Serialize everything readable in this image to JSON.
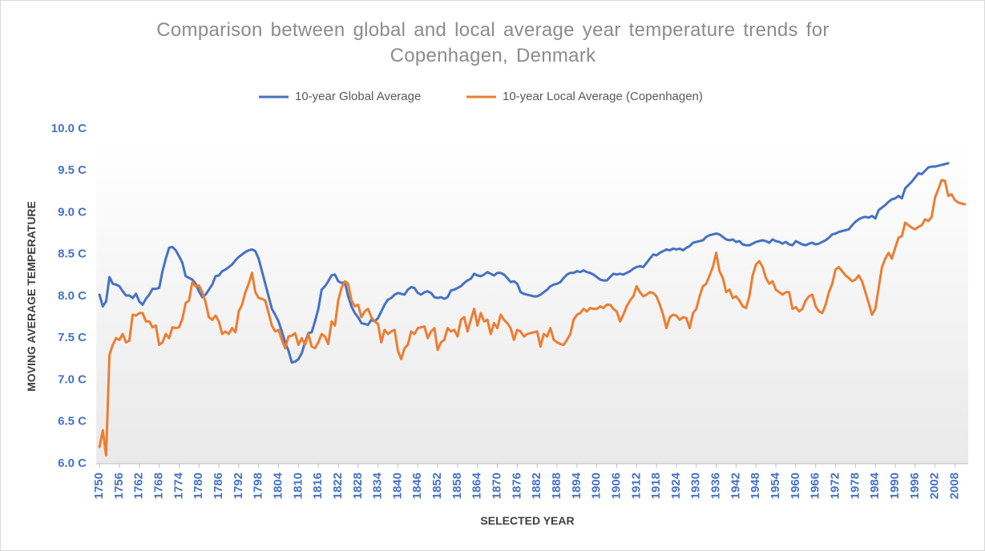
{
  "chart_data": {
    "type": "line",
    "title": "Comparison between global and local average year temperature trends for Copenhagen, Denmark",
    "x_label": "SELECTED YEAR",
    "y_label": "MOVING AVERAGE TEMPERATURE",
    "legend": "top",
    "grid": false,
    "xlim": [
      1749,
      2012
    ],
    "xticks": [
      1750,
      1756,
      1762,
      1768,
      1774,
      1780,
      1786,
      1792,
      1798,
      1804,
      1810,
      1816,
      1822,
      1828,
      1834,
      1840,
      1846,
      1852,
      1858,
      1864,
      1870,
      1876,
      1882,
      1888,
      1894,
      1900,
      1906,
      1912,
      1918,
      1924,
      1930,
      1936,
      1942,
      1948,
      1954,
      1960,
      1966,
      1972,
      1978,
      1984,
      1990,
      1996,
      2002,
      2008
    ],
    "ylim": [
      6,
      10
    ],
    "yticks": [
      {
        "value": 6,
        "label": "6.0 C"
      },
      {
        "value": 6.5,
        "label": "6.5 C"
      },
      {
        "value": 7,
        "label": "7.0 C"
      },
      {
        "value": 7.5,
        "label": "7.5 C"
      },
      {
        "value": 8,
        "label": "8.0 C"
      },
      {
        "value": 8.5,
        "label": "8.5 C"
      },
      {
        "value": 9,
        "label": "9.0 C"
      },
      {
        "value": 9.5,
        "label": "9.5 C"
      },
      {
        "value": 10,
        "label": "10.0 C"
      }
    ],
    "x": [
      1750,
      1751,
      1752,
      1753,
      1754,
      1755,
      1756,
      1757,
      1758,
      1759,
      1760,
      1761,
      1762,
      1763,
      1764,
      1765,
      1766,
      1767,
      1768,
      1769,
      1770,
      1771,
      1772,
      1773,
      1774,
      1775,
      1776,
      1777,
      1778,
      1779,
      1780,
      1781,
      1782,
      1783,
      1784,
      1785,
      1786,
      1787,
      1788,
      1789,
      1790,
      1791,
      1792,
      1793,
      1794,
      1795,
      1796,
      1797,
      1798,
      1799,
      1800,
      1801,
      1802,
      1803,
      1804,
      1805,
      1806,
      1807,
      1808,
      1809,
      1810,
      1811,
      1812,
      1813,
      1814,
      1815,
      1816,
      1817,
      1818,
      1819,
      1820,
      1821,
      1822,
      1823,
      1824,
      1825,
      1826,
      1827,
      1828,
      1829,
      1830,
      1831,
      1832,
      1833,
      1834,
      1835,
      1836,
      1837,
      1838,
      1839,
      1840,
      1841,
      1842,
      1843,
      1844,
      1845,
      1846,
      1847,
      1848,
      1849,
      1850,
      1851,
      1852,
      1853,
      1854,
      1855,
      1856,
      1857,
      1858,
      1859,
      1860,
      1861,
      1862,
      1863,
      1864,
      1865,
      1866,
      1867,
      1868,
      1869,
      1870,
      1871,
      1872,
      1873,
      1874,
      1875,
      1876,
      1877,
      1878,
      1879,
      1880,
      1881,
      1882,
      1883,
      1884,
      1885,
      1886,
      1887,
      1888,
      1889,
      1890,
      1891,
      1892,
      1893,
      1894,
      1895,
      1896,
      1897,
      1898,
      1899,
      1900,
      1901,
      1902,
      1903,
      1904,
      1905,
      1906,
      1907,
      1908,
      1909,
      1910,
      1911,
      1912,
      1913,
      1914,
      1915,
      1916,
      1917,
      1918,
      1919,
      1920,
      1921,
      1922,
      1923,
      1924,
      1925,
      1926,
      1927,
      1928,
      1929,
      1930,
      1931,
      1932,
      1933,
      1934,
      1935,
      1936,
      1937,
      1938,
      1939,
      1940,
      1941,
      1942,
      1943,
      1944,
      1945,
      1946,
      1947,
      1948,
      1949,
      1950,
      1951,
      1952,
      1953,
      1954,
      1955,
      1956,
      1957,
      1958,
      1959,
      1960,
      1961,
      1962,
      1963,
      1964,
      1965,
      1966,
      1967,
      1968,
      1969,
      1970,
      1971,
      1972,
      1973,
      1974,
      1975,
      1976,
      1977,
      1978,
      1979,
      1980,
      1981,
      1982,
      1983,
      1984,
      1985,
      1986,
      1987,
      1988,
      1989,
      1990,
      1991,
      1992,
      1993,
      1994,
      1995,
      1996,
      1997,
      1998,
      1999,
      2000,
      2001,
      2002,
      2003,
      2004,
      2005,
      2006,
      2007,
      2008,
      2009,
      2010,
      2011
    ],
    "series": [
      {
        "name": "10-year Global Average",
        "color": "#4472c4",
        "values": [
          8.02,
          7.88,
          7.94,
          8.23,
          8.15,
          8.14,
          8.12,
          8.06,
          8.01,
          8.01,
          7.98,
          8.03,
          7.94,
          7.9,
          7.97,
          8.02,
          8.09,
          8.09,
          8.1,
          8.3,
          8.45,
          8.58,
          8.59,
          8.55,
          8.48,
          8.4,
          8.24,
          8.22,
          8.2,
          8.15,
          8.06,
          7.99,
          8.02,
          8.08,
          8.14,
          8.24,
          8.25,
          8.3,
          8.32,
          8.35,
          8.38,
          8.43,
          8.47,
          8.5,
          8.53,
          8.55,
          8.56,
          8.54,
          8.45,
          8.3,
          8.15,
          8.0,
          7.85,
          7.78,
          7.7,
          7.58,
          7.45,
          7.35,
          7.21,
          7.22,
          7.25,
          7.32,
          7.45,
          7.56,
          7.57,
          7.7,
          7.85,
          8.08,
          8.12,
          8.18,
          8.25,
          8.26,
          8.18,
          8.16,
          8.17,
          8.0,
          7.88,
          7.8,
          7.75,
          7.68,
          7.67,
          7.66,
          7.72,
          7.7,
          7.74,
          7.82,
          7.9,
          7.96,
          7.98,
          8.02,
          8.04,
          8.03,
          8.02,
          8.08,
          8.11,
          8.1,
          8.04,
          8.02,
          8.05,
          8.06,
          8.04,
          7.99,
          7.98,
          7.99,
          7.97,
          7.99,
          8.07,
          8.08,
          8.1,
          8.12,
          8.16,
          8.19,
          8.21,
          8.27,
          8.25,
          8.24,
          8.26,
          8.29,
          8.27,
          8.25,
          8.28,
          8.28,
          8.26,
          8.22,
          8.17,
          8.18,
          8.15,
          8.05,
          8.03,
          8.02,
          8.01,
          8.0,
          8.0,
          8.02,
          8.05,
          8.08,
          8.12,
          8.14,
          8.15,
          8.17,
          8.22,
          8.26,
          8.28,
          8.28,
          8.3,
          8.29,
          8.31,
          8.29,
          8.28,
          8.26,
          8.23,
          8.2,
          8.19,
          8.19,
          8.23,
          8.27,
          8.26,
          8.27,
          8.26,
          8.28,
          8.3,
          8.33,
          8.35,
          8.36,
          8.35,
          8.4,
          8.45,
          8.5,
          8.49,
          8.52,
          8.54,
          8.56,
          8.55,
          8.57,
          8.56,
          8.57,
          8.55,
          8.58,
          8.6,
          8.64,
          8.65,
          8.66,
          8.67,
          8.71,
          8.73,
          8.74,
          8.75,
          8.74,
          8.71,
          8.68,
          8.67,
          8.68,
          8.65,
          8.66,
          8.62,
          8.61,
          8.61,
          8.63,
          8.65,
          8.66,
          8.67,
          8.66,
          8.64,
          8.68,
          8.66,
          8.65,
          8.63,
          8.65,
          8.62,
          8.61,
          8.66,
          8.64,
          8.62,
          8.61,
          8.63,
          8.64,
          8.62,
          8.63,
          8.65,
          8.67,
          8.7,
          8.74,
          8.75,
          8.77,
          8.78,
          8.79,
          8.8,
          8.85,
          8.89,
          8.92,
          8.94,
          8.95,
          8.94,
          8.96,
          8.93,
          9.03,
          9.06,
          9.09,
          9.13,
          9.16,
          9.17,
          9.2,
          9.17,
          9.29,
          9.33,
          9.37,
          9.42,
          9.47,
          9.46,
          9.5,
          9.54,
          9.55,
          9.55,
          9.56,
          9.57,
          9.58,
          9.59,
          null,
          null,
          null,
          null,
          null
        ]
      },
      {
        "name": "10-year Local Average (Copenhagen)",
        "color": "#ed7d31",
        "values": [
          6.2,
          6.4,
          6.1,
          7.3,
          7.42,
          7.5,
          7.48,
          7.55,
          7.45,
          7.47,
          7.78,
          7.77,
          7.8,
          7.8,
          7.7,
          7.7,
          7.63,
          7.65,
          7.42,
          7.45,
          7.55,
          7.5,
          7.63,
          7.62,
          7.63,
          7.73,
          7.92,
          7.95,
          8.17,
          8.12,
          8.13,
          8.05,
          7.93,
          7.75,
          7.72,
          7.77,
          7.7,
          7.55,
          7.58,
          7.55,
          7.62,
          7.57,
          7.82,
          7.9,
          8.05,
          8.15,
          8.28,
          8.05,
          7.98,
          7.97,
          7.95,
          7.8,
          7.65,
          7.58,
          7.6,
          7.48,
          7.38,
          7.52,
          7.53,
          7.56,
          7.42,
          7.5,
          7.42,
          7.55,
          7.4,
          7.38,
          7.45,
          7.55,
          7.52,
          7.43,
          7.7,
          7.65,
          7.95,
          8.1,
          8.18,
          8.15,
          7.95,
          7.88,
          7.9,
          7.75,
          7.82,
          7.85,
          7.75,
          7.7,
          7.67,
          7.45,
          7.6,
          7.55,
          7.58,
          7.6,
          7.35,
          7.25,
          7.38,
          7.42,
          7.58,
          7.55,
          7.62,
          7.63,
          7.64,
          7.5,
          7.58,
          7.62,
          7.36,
          7.45,
          7.48,
          7.62,
          7.58,
          7.6,
          7.52,
          7.72,
          7.75,
          7.58,
          7.72,
          7.85,
          7.65,
          7.8,
          7.7,
          7.72,
          7.55,
          7.68,
          7.62,
          7.78,
          7.72,
          7.68,
          7.62,
          7.48,
          7.6,
          7.58,
          7.52,
          7.55,
          7.56,
          7.57,
          7.58,
          7.4,
          7.55,
          7.52,
          7.62,
          7.48,
          7.45,
          7.43,
          7.42,
          7.48,
          7.55,
          7.72,
          7.78,
          7.8,
          7.85,
          7.82,
          7.86,
          7.85,
          7.85,
          7.88,
          7.86,
          7.9,
          7.9,
          7.85,
          7.82,
          7.7,
          7.78,
          7.88,
          7.95,
          8.0,
          8.12,
          8.05,
          8.0,
          8.02,
          8.05,
          8.04,
          8.0,
          7.9,
          7.78,
          7.62,
          7.75,
          7.78,
          7.77,
          7.72,
          7.75,
          7.74,
          7.62,
          7.8,
          7.85,
          8.0,
          8.12,
          8.15,
          8.25,
          8.35,
          8.52,
          8.3,
          8.22,
          8.05,
          8.08,
          7.98,
          8.0,
          7.95,
          7.88,
          7.86,
          8.0,
          8.25,
          8.38,
          8.42,
          8.35,
          8.22,
          8.15,
          8.18,
          8.08,
          8.05,
          8.02,
          8.05,
          8.05,
          7.85,
          7.87,
          7.82,
          7.85,
          7.95,
          8.0,
          8.02,
          7.88,
          7.82,
          7.8,
          7.9,
          8.05,
          8.15,
          8.32,
          8.35,
          8.3,
          8.25,
          8.22,
          8.18,
          8.2,
          8.25,
          8.18,
          8.05,
          7.92,
          7.78,
          7.85,
          8.1,
          8.35,
          8.45,
          8.52,
          8.45,
          8.58,
          8.7,
          8.72,
          8.88,
          8.85,
          8.82,
          8.8,
          8.83,
          8.85,
          8.92,
          8.9,
          8.95,
          9.18,
          9.28,
          9.39,
          9.38,
          9.2,
          9.22,
          9.15,
          9.12,
          9.11,
          9.1
        ]
      }
    ]
  }
}
